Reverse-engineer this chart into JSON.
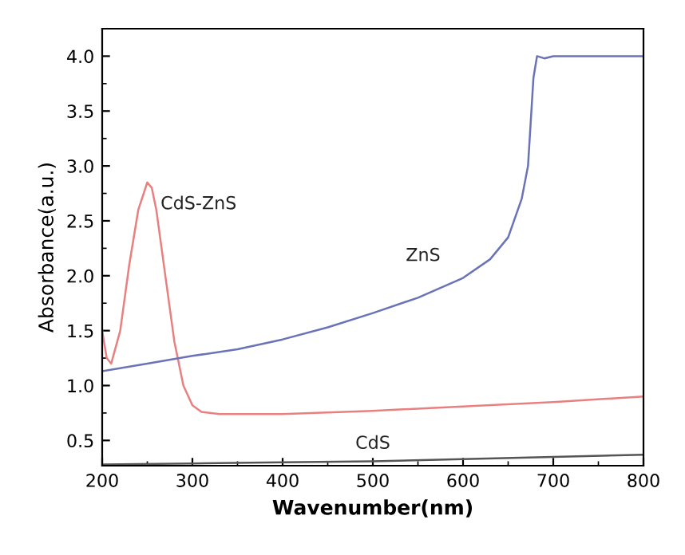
{
  "chart_data": {
    "type": "line",
    "xlabel": "Wavenumber(nm)",
    "ylabel": "Absorbance(a.u.)",
    "xlim": [
      200,
      800
    ],
    "ylim": [
      0.27,
      4.25
    ],
    "xticks": [
      200,
      300,
      400,
      500,
      600,
      700,
      800
    ],
    "yticks": [
      0.5,
      {
        "value": 1,
        "label": "1.0"
      },
      1.5,
      {
        "value": 2,
        "label": "2.0"
      },
      2.5,
      {
        "value": 3,
        "label": "3.0"
      },
      3.5,
      {
        "value": 4,
        "label": "4.0"
      }
    ],
    "grid": false,
    "legend": false,
    "marker": "none",
    "line_style": "solid",
    "series": [
      {
        "name": "CdS-ZnS",
        "color": "#e88080",
        "x": [
          200,
          205,
          210,
          220,
          230,
          240,
          250,
          255,
          260,
          270,
          280,
          290,
          300,
          310,
          330,
          400,
          500,
          600,
          700,
          800
        ],
        "values": [
          1.5,
          1.25,
          1.2,
          1.5,
          2.1,
          2.6,
          2.85,
          2.8,
          2.6,
          2.0,
          1.4,
          1.0,
          0.82,
          0.76,
          0.74,
          0.74,
          0.77,
          0.81,
          0.85,
          0.9
        ]
      },
      {
        "name": "ZnS",
        "color": "#6a73b8",
        "x": [
          200,
          250,
          300,
          350,
          400,
          450,
          500,
          550,
          600,
          630,
          650,
          665,
          672,
          675,
          678,
          682,
          690,
          700,
          800
        ],
        "values": [
          1.13,
          1.2,
          1.27,
          1.33,
          1.42,
          1.53,
          1.66,
          1.8,
          1.98,
          2.15,
          2.35,
          2.7,
          3.0,
          3.4,
          3.8,
          4.0,
          3.98,
          4.0,
          4.0
        ]
      },
      {
        "name": "CdS",
        "color": "#555555",
        "x": [
          200,
          300,
          400,
          500,
          600,
          700,
          800
        ],
        "values": [
          0.28,
          0.29,
          0.3,
          0.31,
          0.33,
          0.35,
          0.37
        ]
      }
    ]
  }
}
